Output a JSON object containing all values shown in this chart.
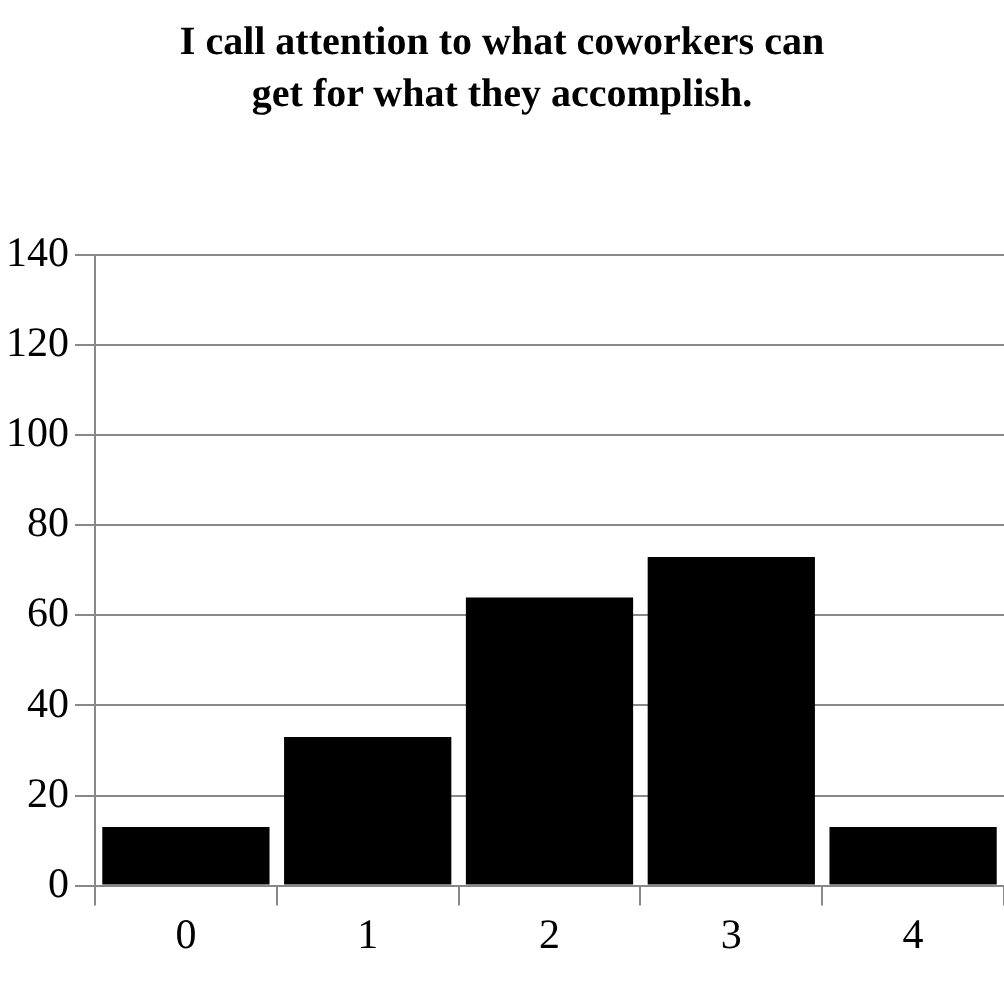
{
  "chart_data": {
    "type": "bar",
    "title": "I call attention to what coworkers can get for what they accomplish.",
    "categories": [
      "0",
      "1",
      "2",
      "3",
      "4"
    ],
    "values": [
      13,
      33,
      64,
      73,
      13
    ],
    "color": "#000000",
    "ylim": [
      0,
      140
    ],
    "yticks": [
      0,
      20,
      40,
      60,
      80,
      100,
      120,
      140
    ],
    "grid": "y"
  }
}
